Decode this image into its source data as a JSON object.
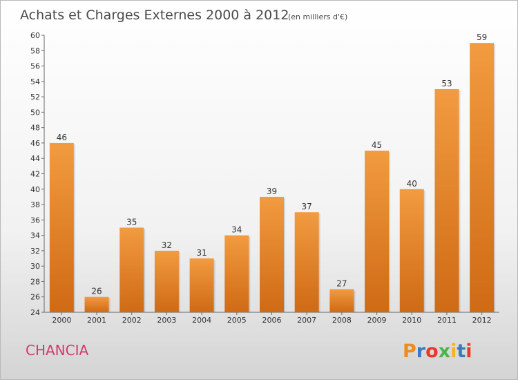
{
  "chart_data": {
    "type": "bar",
    "title": "Achats et Charges Externes 2000 à 2012",
    "subtitle": "(en milliers d'€)",
    "xlabel": "",
    "ylabel": "",
    "categories": [
      "2000",
      "2001",
      "2002",
      "2003",
      "2004",
      "2005",
      "2006",
      "2007",
      "2008",
      "2009",
      "2010",
      "2011",
      "2012"
    ],
    "values": [
      46,
      26,
      35,
      32,
      31,
      34,
      39,
      37,
      27,
      45,
      40,
      53,
      59
    ],
    "ylim": [
      24,
      60
    ],
    "ytick_step": 2,
    "grid": false,
    "bar_color": "#f29b40",
    "bar_color_dark": "#cf6a15"
  },
  "footer": {
    "commune": "CHANCIA",
    "logo": {
      "letters": [
        "P",
        "r",
        "o",
        "x",
        "i",
        "t",
        "i"
      ],
      "colors": [
        "#f08a1c",
        "#3a77bf",
        "#e8382b",
        "#4bb34c",
        "#f3b324",
        "#3a77bf",
        "#e8382b"
      ]
    }
  }
}
